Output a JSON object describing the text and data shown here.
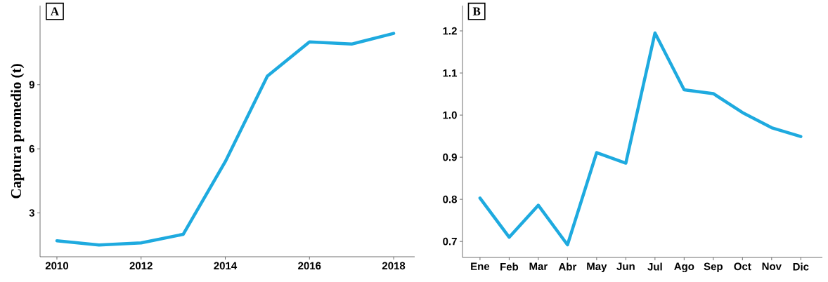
{
  "chart_data": [
    {
      "type": "line",
      "title": "A",
      "ylabel": "Captura promedio (t)",
      "x": [
        2010,
        2011,
        2012,
        2013,
        2014,
        2015,
        2016,
        2017,
        2018
      ],
      "values": [
        1.7,
        1.5,
        1.6,
        2.0,
        5.4,
        9.4,
        11.0,
        10.9,
        11.4
      ],
      "color": "#1eaadf",
      "xlim": [
        2009.6,
        2018.5
      ],
      "ylim": [
        0.95,
        12.7
      ],
      "xticks": [
        2010,
        2012,
        2014,
        2016,
        2018
      ],
      "yticks": [
        3,
        6,
        9
      ]
    },
    {
      "type": "line",
      "title": "B",
      "categories": [
        "Ene",
        "Feb",
        "Mar",
        "Abr",
        "May",
        "Jun",
        "Jul",
        "Ago",
        "Sep",
        "Oct",
        "Nov",
        "Dic"
      ],
      "values": [
        0.803,
        0.71,
        0.786,
        0.692,
        0.911,
        0.886,
        1.195,
        1.06,
        1.051,
        1.006,
        0.97,
        0.949
      ],
      "color": "#1eaadf",
      "ylim": [
        0.662,
        1.26
      ],
      "yticks": [
        0.7,
        0.8,
        0.9,
        {
          "value": 1,
          "label": "1.0"
        },
        1.1,
        1.2
      ]
    }
  ]
}
